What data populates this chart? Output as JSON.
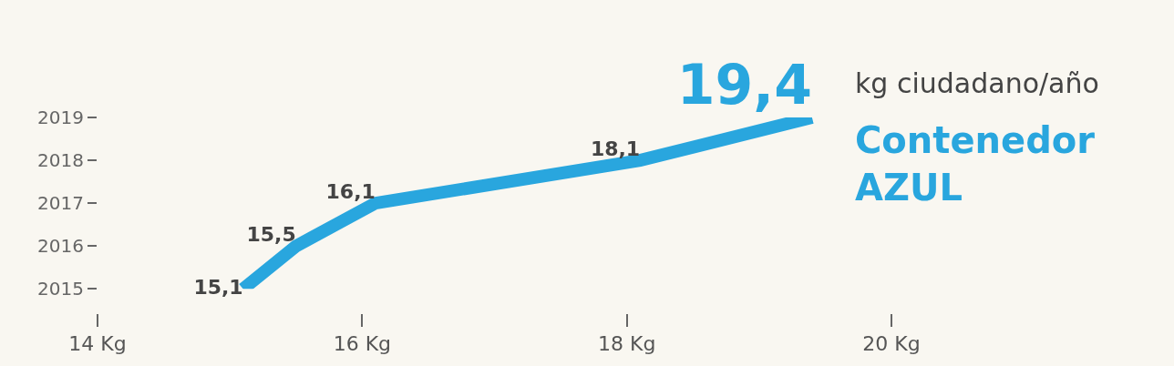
{
  "chart_data": {
    "type": "line",
    "x": [
      15.1,
      15.5,
      16.1,
      18.1,
      19.4
    ],
    "series": [
      {
        "name": "Contenedor AZUL",
        "color": "#29a6de",
        "values": [
          2015,
          2016,
          2017,
          2018,
          2019
        ]
      }
    ],
    "value_labels": [
      "15,1",
      "15,5",
      "16,1",
      "18,1",
      "19,4"
    ],
    "annotations": [
      "kg ciudadano/año"
    ],
    "xlim": [
      14,
      20
    ],
    "xticks": [
      {
        "value": 14,
        "label": "14 Kg"
      },
      {
        "value": 16,
        "label": "16 Kg"
      },
      {
        "value": 18,
        "label": "18 Kg"
      },
      {
        "value": 20,
        "label": "20 Kg"
      }
    ],
    "ylim": [
      2015,
      2019
    ],
    "yticks": [
      2015,
      2016,
      2017,
      2018,
      2019
    ],
    "grid": false,
    "legend": false,
    "marker": "none",
    "line_style": "solid"
  }
}
